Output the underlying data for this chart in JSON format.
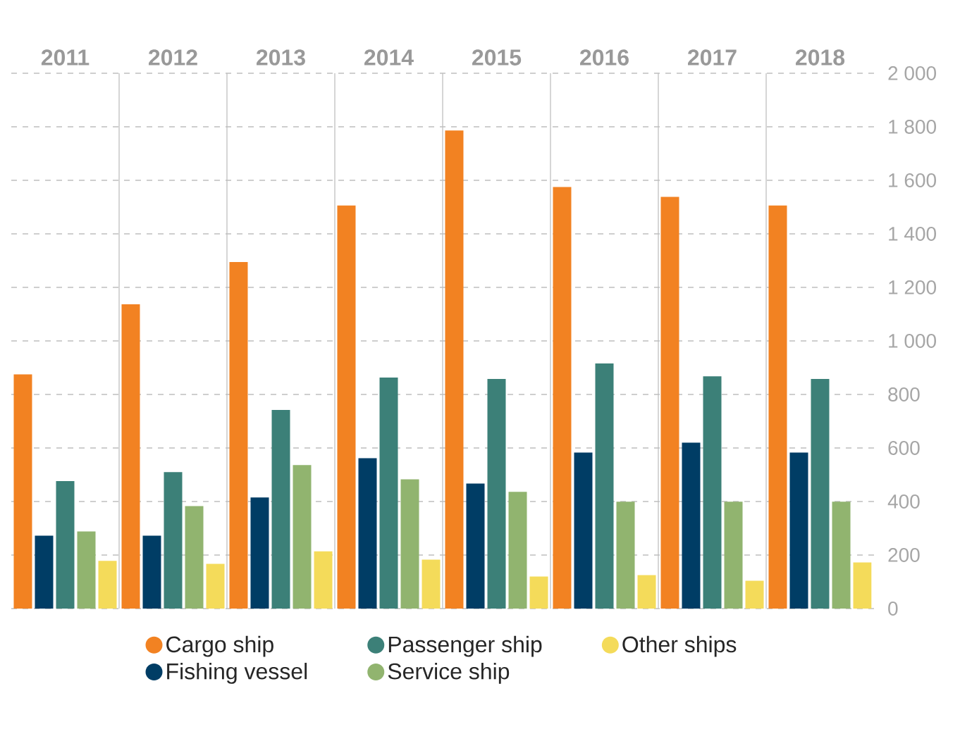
{
  "chart_data": {
    "type": "bar",
    "categories": [
      "2011",
      "2012",
      "2013",
      "2014",
      "2015",
      "2016",
      "2017",
      "2018"
    ],
    "series": [
      {
        "name": "Cargo ship",
        "color": "#f28222",
        "values": [
          875,
          1137,
          1295,
          1506,
          1786,
          1575,
          1538,
          1506
        ]
      },
      {
        "name": "Fishing vessel",
        "color": "#003d65",
        "values": [
          272,
          272,
          415,
          562,
          467,
          583,
          620,
          583
        ]
      },
      {
        "name": "Passenger ship",
        "color": "#3c8078",
        "values": [
          476,
          510,
          742,
          863,
          858,
          916,
          868,
          858
        ]
      },
      {
        "name": "Service ship",
        "color": "#91b46f",
        "values": [
          288,
          383,
          536,
          483,
          436,
          399,
          399,
          399
        ]
      },
      {
        "name": "Other ships",
        "color": "#f4db5a",
        "values": [
          178,
          167,
          214,
          183,
          120,
          125,
          104,
          172
        ]
      }
    ],
    "ylim": [
      0,
      2000
    ],
    "yticks": [
      0,
      {
        "value": 200,
        "label": "200"
      },
      {
        "value": 400,
        "label": "400"
      },
      {
        "value": 600,
        "label": "600"
      },
      {
        "value": 800,
        "label": "800"
      },
      {
        "value": 1000,
        "label": "1 000"
      },
      {
        "value": 1200,
        "label": "1 200"
      },
      {
        "value": 1400,
        "label": "1 400"
      },
      {
        "value": 1600,
        "label": "1 600"
      },
      {
        "value": 1800,
        "label": "1 800"
      },
      {
        "value": 2000,
        "label": "2 000"
      }
    ],
    "grid": "y",
    "legend": "bottom"
  }
}
